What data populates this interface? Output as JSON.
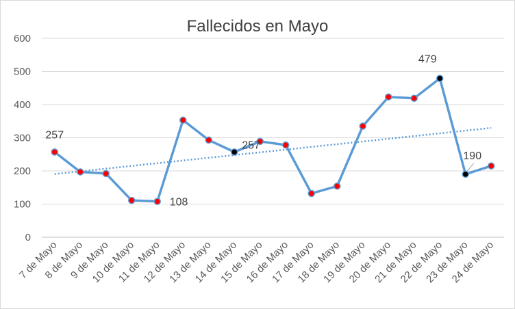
{
  "chart_data": {
    "type": "line",
    "title": "Fallecidos en Mayo",
    "xlabel": "",
    "ylabel": "",
    "ylim": [
      0,
      600
    ],
    "yticks": [
      0,
      100,
      200,
      300,
      400,
      500,
      600
    ],
    "grid": true,
    "legend": "none",
    "categories": [
      "7 de Mayo",
      "8 de Mayo",
      "9 de Mayo",
      "10 de Mayo",
      "11 de Mayo",
      "12 de Mayo",
      "13 de Mayo",
      "14 de Mayo",
      "15 de Mayo",
      "16 de Mayo",
      "17 de Mayo",
      "18 de Mayo",
      "19 de Mayo",
      "20 de Mayo",
      "21 de Mayo",
      "22 de Mayo",
      "23 de Mayo",
      "24 de Mayo"
    ],
    "series": [
      {
        "values": [
          257,
          197,
          192,
          111,
          108,
          353,
          293,
          257,
          289,
          278,
          132,
          154,
          335,
          423,
          419,
          479,
          190,
          215
        ],
        "color": "#5b9bd5",
        "marker_color": "#ff0000",
        "highlight_marker_color": "#000000",
        "highlighted_points": [
          "14 de Mayo",
          "22 de Mayo",
          "23 de Mayo"
        ]
      }
    ],
    "trendline": {
      "type": "linear",
      "style": "dotted",
      "color": "#5b9bd5"
    },
    "data_labels": [
      {
        "category": "7 de Mayo",
        "text": "257"
      },
      {
        "category": "11 de Mayo",
        "text": "108"
      },
      {
        "category": "14 de Mayo",
        "text": "257"
      },
      {
        "category": "22 de Mayo",
        "text": "479"
      },
      {
        "category": "23 de Mayo",
        "text": "190"
      }
    ]
  }
}
